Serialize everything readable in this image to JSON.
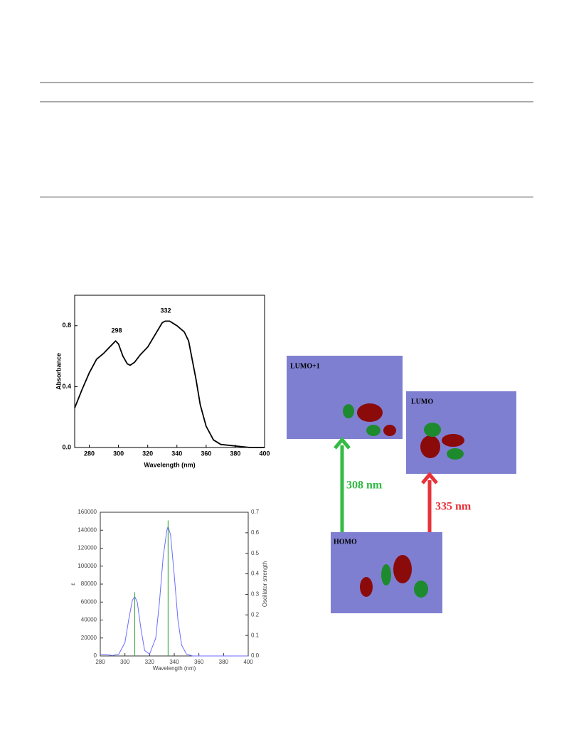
{
  "chart_data": [
    {
      "type": "line",
      "y_label": "Absorbance",
      "x_label": "Wavelength (nm)",
      "annotations": [
        "298",
        "332"
      ],
      "xlim": [
        270,
        400
      ],
      "xticks": [
        280,
        300,
        320,
        340,
        360,
        380,
        400
      ],
      "ylim": [
        0,
        1
      ],
      "yticks": [
        {
          "value": 0,
          "label": "0.0"
        },
        0.4,
        0.8
      ],
      "series": [
        {
          "color": "#000000",
          "x": [
            270,
            275,
            280,
            285,
            290,
            295,
            298,
            300,
            303,
            306,
            308,
            311,
            315,
            320,
            325,
            330,
            332,
            335,
            340,
            345,
            348,
            350,
            353,
            356,
            360,
            365,
            370,
            380,
            390,
            400
          ],
          "values": [
            0.26,
            0.38,
            0.49,
            0.58,
            0.62,
            0.67,
            0.7,
            0.68,
            0.6,
            0.55,
            0.54,
            0.56,
            0.61,
            0.66,
            0.74,
            0.82,
            0.83,
            0.83,
            0.8,
            0.76,
            0.7,
            0.6,
            0.45,
            0.28,
            0.14,
            0.05,
            0.02,
            0.01,
            0,
            0
          ]
        }
      ]
    },
    {
      "type": "line",
      "y_label": "ε",
      "y2_label": "Oscillator strength",
      "x_label": "Wavelength (nm)",
      "xlim": [
        280,
        400
      ],
      "xticks": [
        280,
        300,
        320,
        340,
        360,
        380,
        400
      ],
      "ylim": [
        0,
        160000
      ],
      "yticks": [
        0,
        20000,
        40000,
        60000,
        80000,
        100000,
        120000,
        140000,
        160000
      ],
      "y2lim": [
        0,
        0.7
      ],
      "y2ticks": [
        {
          "value": 0,
          "label": "0.0"
        },
        0.1,
        0.2,
        0.3,
        0.4,
        0.5,
        0.6,
        0.7
      ],
      "series": [
        {
          "color": "#6b6bff",
          "x": [
            280,
            285,
            290,
            295,
            300,
            303,
            306,
            308,
            310,
            313,
            316,
            320,
            325,
            328,
            331,
            334,
            335,
            337,
            340,
            343,
            346,
            350,
            355,
            400
          ],
          "values": [
            2000,
            1500,
            500,
            2000,
            15000,
            40000,
            62000,
            66000,
            60000,
            30000,
            6000,
            2000,
            20000,
            60000,
            110000,
            140000,
            144000,
            135000,
            90000,
            40000,
            12000,
            2000,
            0,
            0
          ]
        },
        {
          "type": "stem",
          "axis": "y2",
          "color": "#2ca02c",
          "x": [
            308,
            335
          ],
          "values": [
            0.31,
            0.66
          ]
        }
      ]
    }
  ],
  "diagram": {
    "nodes": [
      {
        "label": "LUMO+1"
      },
      {
        "label": "LUMO"
      },
      {
        "label": "HOMO"
      }
    ],
    "arrows": [
      {
        "label": "308 nm",
        "color": "#33bb44"
      },
      {
        "label": "335 nm",
        "color": "#e8323a"
      }
    ]
  }
}
